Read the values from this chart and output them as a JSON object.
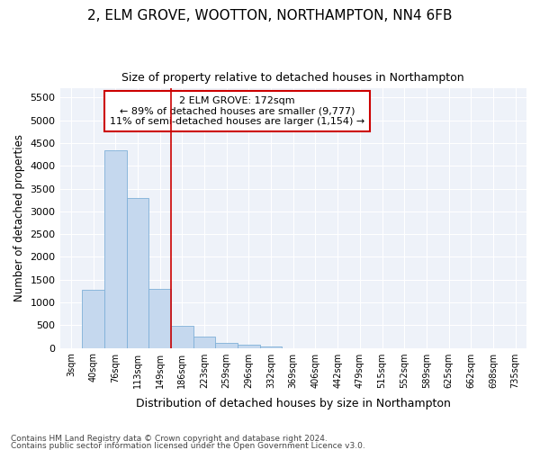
{
  "title1": "2, ELM GROVE, WOOTTON, NORTHAMPTON, NN4 6FB",
  "title2": "Size of property relative to detached houses in Northampton",
  "xlabel": "Distribution of detached houses by size in Northampton",
  "ylabel": "Number of detached properties",
  "categories": [
    "3sqm",
    "40sqm",
    "76sqm",
    "113sqm",
    "149sqm",
    "186sqm",
    "223sqm",
    "259sqm",
    "296sqm",
    "332sqm",
    "369sqm",
    "406sqm",
    "442sqm",
    "479sqm",
    "515sqm",
    "552sqm",
    "589sqm",
    "625sqm",
    "662sqm",
    "698sqm",
    "735sqm"
  ],
  "values": [
    0,
    1280,
    4350,
    3300,
    1300,
    480,
    240,
    100,
    60,
    40,
    0,
    0,
    0,
    0,
    0,
    0,
    0,
    0,
    0,
    0,
    0
  ],
  "bar_color": "#c5d8ee",
  "bar_edge_color": "#7fb0d8",
  "vline_color": "#cc0000",
  "annotation_line1": "2 ELM GROVE: 172sqm",
  "annotation_line2": "← 89% of detached houses are smaller (9,777)",
  "annotation_line3": "11% of semi-detached houses are larger (1,154) →",
  "annotation_box_color": "#ffffff",
  "annotation_box_edge": "#cc0000",
  "ylim": [
    0,
    5700
  ],
  "yticks": [
    0,
    500,
    1000,
    1500,
    2000,
    2500,
    3000,
    3500,
    4000,
    4500,
    5000,
    5500
  ],
  "background_color": "#eef2f9",
  "footnote1": "Contains HM Land Registry data © Crown copyright and database right 2024.",
  "footnote2": "Contains public sector information licensed under the Open Government Licence v3.0."
}
